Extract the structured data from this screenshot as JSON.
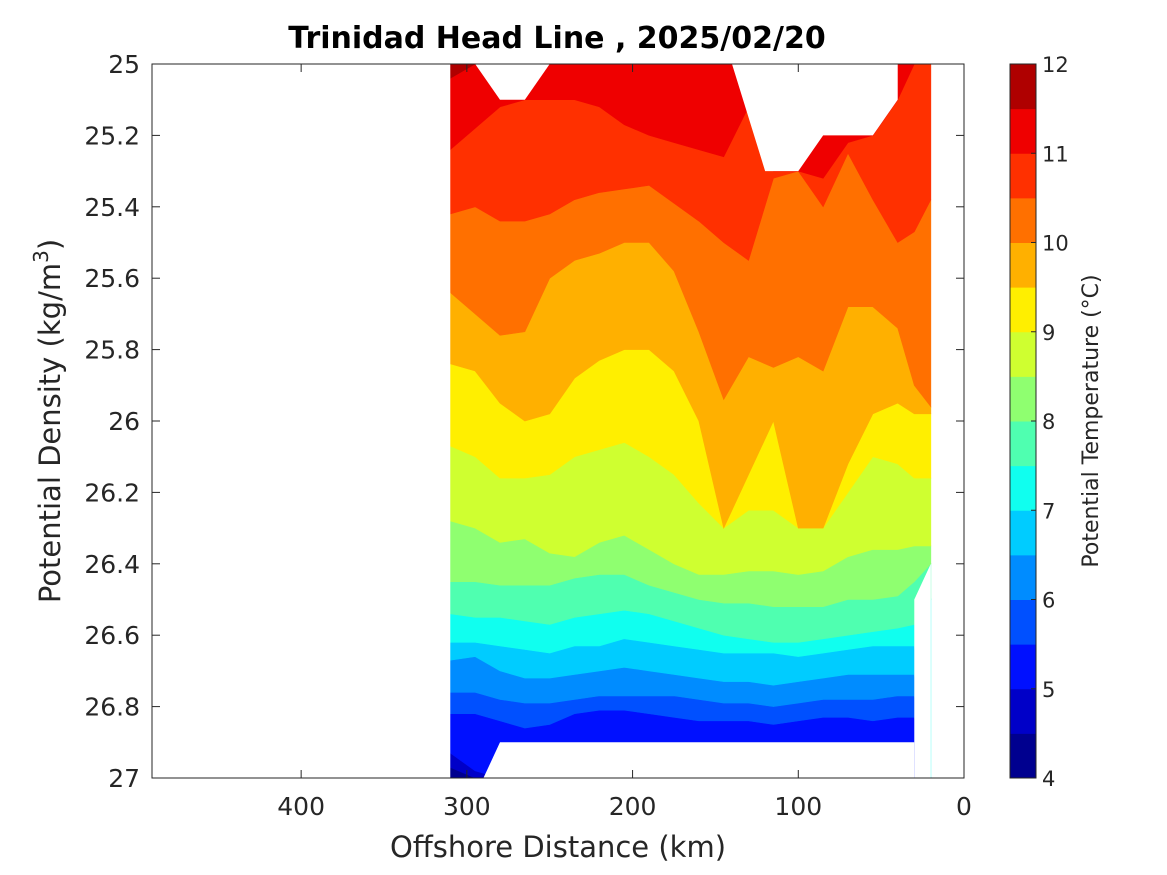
{
  "chart_data": {
    "type": "contour",
    "title": "Trinidad Head Line , 2025/02/20",
    "xlabel": "Offshore Distance (km)",
    "ylabel_main": "Potential Density (kg/m",
    "ylabel_sup": "3",
    "ylabel_close": ")",
    "colorbar_label": "Potential Temperature (°C)",
    "x_reversed": true,
    "y_reversed": true,
    "xlim": [
      0,
      490
    ],
    "ylim": [
      25,
      27
    ],
    "x_ticks": [
      {
        "value": 400,
        "label": "400"
      },
      {
        "value": 300,
        "label": "300"
      },
      {
        "value": 200,
        "label": "200"
      },
      {
        "value": 100,
        "label": "100"
      },
      {
        "value": 0,
        "label": "0"
      }
    ],
    "y_ticks": [
      {
        "value": 25,
        "label": "25"
      },
      {
        "value": 25.2,
        "label": "25.2"
      },
      {
        "value": 25.4,
        "label": "25.4"
      },
      {
        "value": 25.6,
        "label": "25.6"
      },
      {
        "value": 25.8,
        "label": "25.8"
      },
      {
        "value": 26,
        "label": "26"
      },
      {
        "value": 26.2,
        "label": "26.2"
      },
      {
        "value": 26.4,
        "label": "26.4"
      },
      {
        "value": 26.6,
        "label": "26.6"
      },
      {
        "value": 26.8,
        "label": "26.8"
      },
      {
        "value": 27,
        "label": "27"
      }
    ],
    "colorbar": {
      "min": 4,
      "max": 12,
      "levels": [
        4,
        4.5,
        5,
        5.5,
        6,
        6.5,
        7,
        7.5,
        8,
        8.5,
        9,
        9.5,
        10,
        10.5,
        11,
        11.5,
        12
      ],
      "colors": [
        "#00008f",
        "#0000c8",
        "#0010ff",
        "#0050ff",
        "#008cff",
        "#00ccff",
        "#10ffef",
        "#4fffb0",
        "#8fff70",
        "#cfff30",
        "#ffef00",
        "#ffb000",
        "#ff7000",
        "#ff3000",
        "#ef0000",
        "#af0000"
      ],
      "tick_labels": [
        "4",
        "5",
        "6",
        "7",
        "8",
        "9",
        "10",
        "11",
        "12"
      ]
    },
    "station_distances": [
      310,
      295,
      280,
      265,
      250,
      235,
      220,
      205,
      190,
      175,
      160,
      145,
      130,
      115,
      100,
      85,
      70,
      55,
      40,
      30,
      20
    ],
    "isotherms": [
      {
        "temp": 4.5,
        "depths": [
          26.97,
          27.0,
          27.0,
          27.0,
          27.0,
          27.0,
          27.0,
          27.0,
          27.0,
          27.0,
          27.0,
          27.0,
          27.0,
          27.0,
          27.0,
          27.0,
          27.0,
          27.0,
          27.0,
          27.0,
          27.0
        ]
      },
      {
        "temp": 5.0,
        "depths": [
          26.93,
          26.98,
          27.0,
          27.0,
          27.0,
          27.0,
          27.0,
          27.0,
          27.0,
          27.0,
          27.0,
          27.0,
          27.0,
          27.0,
          27.0,
          27.0,
          27.0,
          27.0,
          27.0,
          27.0,
          27.0
        ]
      },
      {
        "temp": 5.5,
        "depths": [
          26.82,
          26.82,
          26.84,
          26.86,
          26.85,
          26.82,
          26.81,
          26.81,
          26.82,
          26.83,
          26.84,
          26.84,
          26.84,
          26.85,
          26.84,
          26.83,
          26.83,
          26.84,
          26.83,
          26.83,
          27.0
        ]
      },
      {
        "temp": 6.0,
        "depths": [
          26.76,
          26.76,
          26.78,
          26.79,
          26.79,
          26.78,
          26.77,
          26.77,
          26.77,
          26.77,
          26.78,
          26.79,
          26.79,
          26.8,
          26.79,
          26.78,
          26.78,
          26.78,
          26.77,
          26.77,
          27.0
        ]
      },
      {
        "temp": 6.5,
        "depths": [
          26.67,
          26.66,
          26.7,
          26.72,
          26.72,
          26.71,
          26.7,
          26.69,
          26.7,
          26.71,
          26.72,
          26.73,
          26.73,
          26.74,
          26.73,
          26.72,
          26.71,
          26.71,
          26.71,
          26.71,
          27.0
        ]
      },
      {
        "temp": 7.0,
        "depths": [
          26.62,
          26.62,
          26.63,
          26.64,
          26.65,
          26.63,
          26.63,
          26.61,
          26.62,
          26.63,
          26.64,
          26.65,
          26.65,
          26.65,
          26.66,
          26.65,
          26.64,
          26.63,
          26.63,
          26.63,
          27.0
        ]
      },
      {
        "temp": 7.5,
        "depths": [
          26.54,
          26.55,
          26.55,
          26.56,
          26.57,
          26.55,
          26.54,
          26.53,
          26.54,
          26.56,
          26.58,
          26.6,
          26.61,
          26.62,
          26.62,
          26.61,
          26.6,
          26.59,
          26.58,
          26.57,
          26.5
        ]
      },
      {
        "temp": 8.0,
        "depths": [
          26.45,
          26.45,
          26.46,
          26.46,
          26.46,
          26.44,
          26.43,
          26.43,
          26.46,
          26.48,
          26.5,
          26.51,
          26.51,
          26.52,
          26.52,
          26.52,
          26.5,
          26.5,
          26.49,
          26.45,
          26.4
        ]
      },
      {
        "temp": 8.5,
        "depths": [
          26.28,
          26.3,
          26.34,
          26.33,
          26.37,
          26.38,
          26.34,
          26.32,
          26.36,
          26.4,
          26.43,
          26.43,
          26.42,
          26.42,
          26.43,
          26.42,
          26.38,
          26.36,
          26.36,
          26.35,
          26.35
        ]
      },
      {
        "temp": 9.0,
        "depths": [
          26.07,
          26.1,
          26.16,
          26.16,
          26.15,
          26.1,
          26.08,
          26.06,
          26.1,
          26.15,
          26.23,
          26.3,
          26.25,
          26.25,
          26.3,
          26.3,
          26.2,
          26.1,
          26.12,
          26.16,
          26.16
        ]
      },
      {
        "temp": 9.5,
        "depths": [
          25.84,
          25.86,
          25.95,
          26.0,
          25.98,
          25.88,
          25.83,
          25.8,
          25.8,
          25.86,
          26.0,
          26.3,
          26.15,
          26.0,
          26.3,
          26.3,
          26.12,
          25.98,
          25.95,
          25.98,
          25.98
        ]
      },
      {
        "temp": 10.0,
        "depths": [
          25.64,
          25.7,
          25.76,
          25.75,
          25.6,
          25.55,
          25.53,
          25.5,
          25.5,
          25.58,
          25.75,
          25.94,
          25.82,
          25.85,
          25.82,
          25.86,
          25.68,
          25.68,
          25.74,
          25.9,
          25.96
        ]
      },
      {
        "temp": 10.5,
        "depths": [
          25.42,
          25.4,
          25.44,
          25.44,
          25.42,
          25.38,
          25.36,
          25.35,
          25.34,
          25.39,
          25.44,
          25.5,
          25.55,
          25.32,
          25.3,
          25.4,
          25.25,
          25.38,
          25.5,
          25.47,
          25.38
        ]
      },
      {
        "temp": 11.0,
        "depths": [
          25.24,
          25.18,
          25.12,
          25.1,
          25.1,
          25.1,
          25.12,
          25.17,
          25.2,
          25.22,
          25.24,
          25.26,
          25.12,
          25.3,
          25.3,
          25.32,
          25.22,
          25.2,
          25.1,
          25.0,
          25.0
        ]
      },
      {
        "temp": 11.5,
        "depths": [
          25.04,
          25.0,
          25.0,
          25.0,
          25.0,
          25.0,
          25.0,
          25.0,
          25.0,
          25.0,
          25.0,
          25.0,
          25.0,
          25.0,
          25.0,
          25.0,
          25.0,
          25.0,
          25.0,
          25.0,
          25.0
        ]
      }
    ],
    "blank_regions": [
      {
        "points": [
          [
            310,
            25.0
          ],
          [
            310,
            27.0
          ],
          [
            490,
            27.0
          ],
          [
            490,
            25.0
          ]
        ]
      },
      {
        "points": [
          [
            295,
            25.0
          ],
          [
            280,
            25.1
          ],
          [
            265,
            25.1
          ],
          [
            250,
            25.0
          ]
        ]
      },
      {
        "points": [
          [
            140,
            25.0
          ],
          [
            120,
            25.3
          ],
          [
            100,
            25.3
          ],
          [
            85,
            25.2
          ],
          [
            55,
            25.2
          ],
          [
            40,
            25.1
          ],
          [
            40,
            25.0
          ]
        ]
      },
      {
        "points": [
          [
            290,
            27.0
          ],
          [
            280,
            26.9
          ],
          [
            30,
            26.9
          ],
          [
            30,
            27.0
          ]
        ]
      },
      {
        "points": [
          [
            30,
            26.5
          ],
          [
            30,
            27.0
          ],
          [
            20,
            27.0
          ],
          [
            20,
            26.4
          ]
        ]
      }
    ]
  }
}
